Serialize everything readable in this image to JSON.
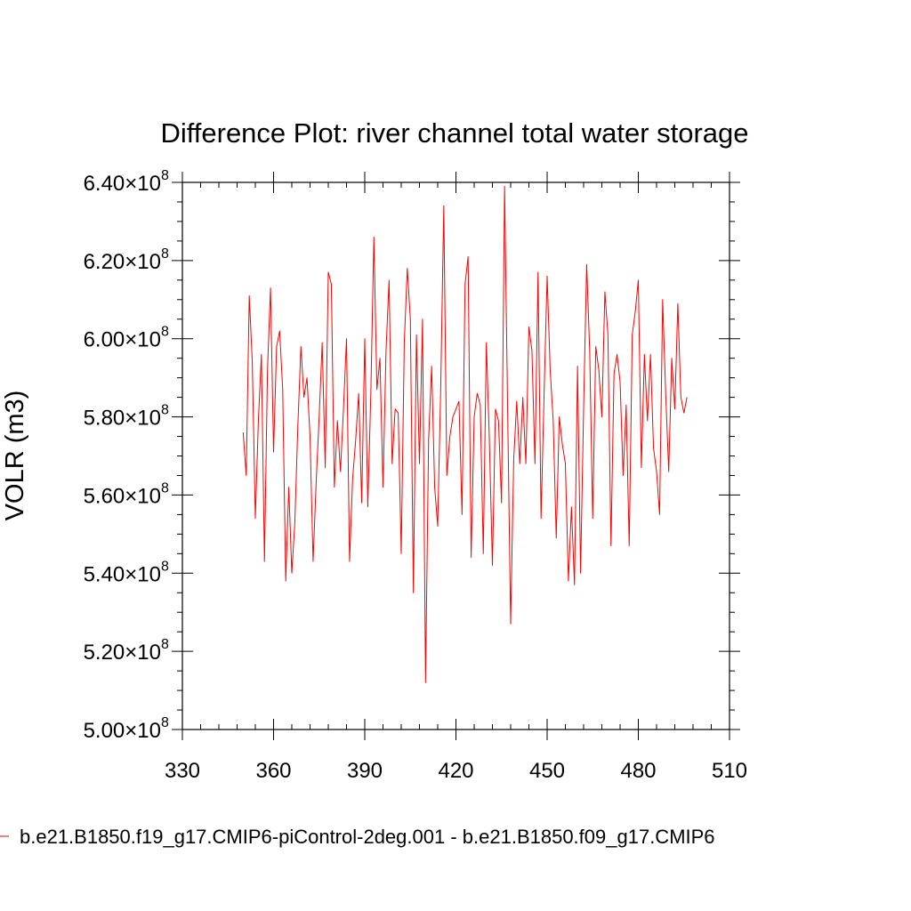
{
  "chart_data": {
    "type": "line",
    "title": "Difference Plot: river channel total water storage",
    "xlabel": "",
    "ylabel": "VOLR  (m3)",
    "xlim": [
      330,
      510
    ],
    "ylim": [
      500000000,
      640000000
    ],
    "x_ticks": [
      330,
      360,
      390,
      420,
      450,
      480,
      510
    ],
    "y_tick_labels": [
      {
        "mantissa": "5.00",
        "times": "×10",
        "exp": "8"
      },
      {
        "mantissa": "5.20",
        "times": "×10",
        "exp": "8"
      },
      {
        "mantissa": "5.40",
        "times": "×10",
        "exp": "8"
      },
      {
        "mantissa": "5.60",
        "times": "×10",
        "exp": "8"
      },
      {
        "mantissa": "5.80",
        "times": "×10",
        "exp": "8"
      },
      {
        "mantissa": "6.00",
        "times": "×10",
        "exp": "8"
      },
      {
        "mantissa": "6.20",
        "times": "×10",
        "exp": "8"
      },
      {
        "mantissa": "6.40",
        "times": "×10",
        "exp": "8"
      }
    ],
    "y_tick_values": [
      500000000,
      520000000,
      540000000,
      560000000,
      580000000,
      600000000,
      620000000,
      640000000
    ],
    "grid": false,
    "legend_position": "bottom",
    "series": [
      {
        "name": "b.e21.B1850.f19_g17.CMIP6-piControl-2deg.001 - b.e21.B1850.f09_g17.CMIP6",
        "color": "#ff0000",
        "x_start": 350,
        "x_step": 1,
        "values": [
          576000000.0,
          565000000.0,
          611000000.0,
          594000000.0,
          554000000.0,
          579000000.0,
          596000000.0,
          543000000.0,
          592000000.0,
          613000000.0,
          571000000.0,
          598000000.0,
          602000000.0,
          587000000.0,
          538000000.0,
          562000000.0,
          540000000.0,
          553000000.0,
          578000000.0,
          598000000.0,
          585000000.0,
          590000000.0,
          575000000.0,
          543000000.0,
          563000000.0,
          580000000.0,
          599000000.0,
          567000000.0,
          617000000.0,
          614000000.0,
          562000000.0,
          579000000.0,
          566000000.0,
          582000000.0,
          600000000.0,
          543000000.0,
          564000000.0,
          574000000.0,
          586000000.0,
          558000000.0,
          600000000.0,
          557000000.0,
          586000000.0,
          626000000.0,
          587000000.0,
          595000000.0,
          562000000.0,
          597000000.0,
          615000000.0,
          568000000.0,
          582000000.0,
          581000000.0,
          545000000.0,
          599000000.0,
          618000000.0,
          605000000.0,
          535000000.0,
          601000000.0,
          568000000.0,
          605000000.0,
          512000000.0,
          574000000.0,
          593000000.0,
          562000000.0,
          552000000.0,
          588000000.0,
          634000000.0,
          565000000.0,
          575000000.0,
          580000000.0,
          582000000.0,
          584000000.0,
          555000000.0,
          614000000.0,
          621000000.0,
          544000000.0,
          580000000.0,
          586000000.0,
          583000000.0,
          545000000.0,
          599000000.0,
          574000000.0,
          542000000.0,
          582000000.0,
          579000000.0,
          558000000.0,
          639000000.0,
          582000000.0,
          527000000.0,
          569000000.0,
          584000000.0,
          568000000.0,
          585000000.0,
          568000000.0,
          603000000.0,
          597000000.0,
          568000000.0,
          617000000.0,
          554000000.0,
          586000000.0,
          616000000.0,
          592000000.0,
          579000000.0,
          549000000.0,
          580000000.0,
          573000000.0,
          568000000.0,
          538000000.0,
          557000000.0,
          537000000.0,
          593000000.0,
          540000000.0,
          582000000.0,
          619000000.0,
          597000000.0,
          554000000.0,
          598000000.0,
          592000000.0,
          580000000.0,
          612000000.0,
          601000000.0,
          547000000.0,
          591000000.0,
          596000000.0,
          589000000.0,
          565000000.0,
          583000000.0,
          547000000.0,
          601000000.0,
          607000000.0,
          615000000.0,
          567000000.0,
          596000000.0,
          579000000.0,
          596000000.0,
          572000000.0,
          566000000.0,
          555000000.0,
          610000000.0,
          586000000.0,
          566000000.0,
          595000000.0,
          582000000.0,
          609000000.0,
          585000000.0,
          581000000.0,
          585000000.0
        ]
      }
    ]
  }
}
